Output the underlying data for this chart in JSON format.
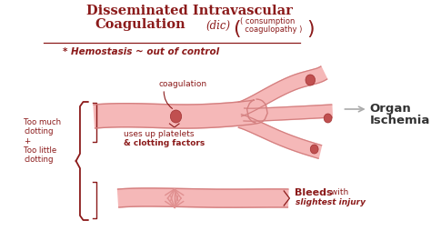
{
  "bg_color": "#ffffff",
  "title_line1": "Disseminated Intravascular",
  "title_line2": "Coagulation",
  "title_dic": "(dic)",
  "title_consumption": "( consumption",
  "title_coagulopathy": "  coagulopathy )",
  "hemostasis": "* Hemostasis ~ out of control",
  "coagulation_label": "coagulation",
  "platelets_label1": "uses up platelets",
  "platelets_label2": "& clotting factors",
  "organ_label1": "Organ",
  "organ_label2": "Ischemia",
  "too_much_label": "Too much\nclotting\n+\nToo little\nclotting",
  "bleeds_label1": "Bleeds",
  "bleeds_label2": " with",
  "bleeds_label3": "slightest injury",
  "dark_red": "#8B1A1A",
  "vessel_fill": "#f5b8b8",
  "vessel_edge": "#d48080",
  "clot_color": "#c05050",
  "organ_color": "#333333",
  "bracket_color": "#8B1A1A",
  "underline_color": "#8B1A1A"
}
